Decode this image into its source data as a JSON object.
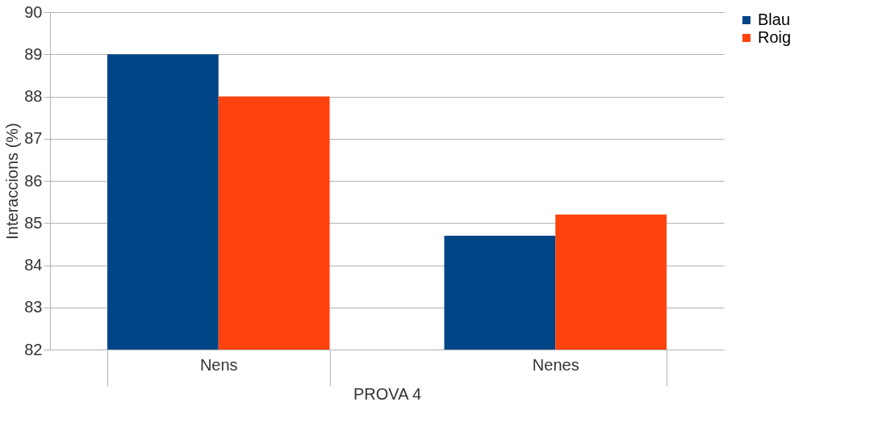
{
  "chart_data": {
    "type": "bar",
    "xlabel": "PROVA 4",
    "ylabel": "Interaccions (%)",
    "categories": [
      "Nens",
      "Nenes"
    ],
    "series": [
      {
        "name": "Blau",
        "color": "#004586",
        "values": [
          89.0,
          84.7
        ]
      },
      {
        "name": "Roig",
        "color": "#ff420e",
        "values": [
          88.0,
          85.2
        ]
      }
    ],
    "ylim": [
      82,
      90
    ],
    "yticks": [
      82,
      83,
      84,
      85,
      86,
      87,
      88,
      89,
      90
    ],
    "grid": "y",
    "legend": "right"
  }
}
